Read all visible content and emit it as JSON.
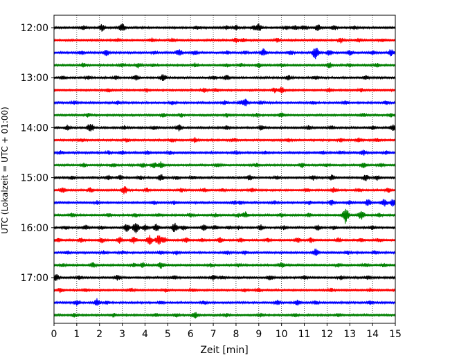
{
  "chart_data": {
    "type": "line",
    "title": "",
    "xlabel": "Zeit  [min]",
    "ylabel": "UTC (Lokalzeit = UTC + 01:00)",
    "xlim": [
      0,
      15
    ],
    "x_ticks": [
      "0",
      "1",
      "2",
      "3",
      "4",
      "5",
      "6",
      "7",
      "8",
      "9",
      "10",
      "11",
      "12",
      "13",
      "14",
      "15"
    ],
    "y_ticks": [
      "12:00",
      "13:00",
      "14:00",
      "15:00",
      "16:00",
      "17:00"
    ],
    "trace_interval_min": 15,
    "color_cycle": [
      "#000000",
      "#ff0000",
      "#0000ff",
      "#008000"
    ],
    "grid_x": true,
    "grid_style": "dotted",
    "series": [
      {
        "start": "12:00",
        "color": "#000000",
        "events": [
          [
            1.3,
            3
          ],
          [
            2.1,
            5
          ],
          [
            3.0,
            6
          ],
          [
            6.3,
            3
          ],
          [
            7.6,
            3
          ],
          [
            8.0,
            4
          ],
          [
            8.8,
            4
          ],
          [
            9.0,
            6
          ],
          [
            10.2,
            3
          ],
          [
            10.6,
            4
          ],
          [
            11.0,
            4
          ],
          [
            11.6,
            5
          ],
          [
            12.3,
            4
          ],
          [
            13.2,
            3
          ]
        ]
      },
      {
        "start": "12:15",
        "color": "#ff0000",
        "events": [
          [
            2.8,
            3
          ],
          [
            4.3,
            3
          ],
          [
            5.2,
            3
          ],
          [
            8.0,
            4
          ],
          [
            8.3,
            3
          ],
          [
            9.8,
            3
          ],
          [
            12.6,
            4
          ],
          [
            13.4,
            3
          ],
          [
            14.4,
            3
          ]
        ]
      },
      {
        "start": "12:30",
        "color": "#0000ff",
        "events": [
          [
            1.2,
            3
          ],
          [
            2.3,
            5
          ],
          [
            4.4,
            3
          ],
          [
            5.5,
            6
          ],
          [
            6.2,
            4
          ],
          [
            7.6,
            3
          ],
          [
            8.4,
            3
          ],
          [
            9.2,
            6
          ],
          [
            10.4,
            4
          ],
          [
            11.5,
            10
          ],
          [
            12.1,
            4
          ],
          [
            13.0,
            4
          ],
          [
            14.0,
            3
          ],
          [
            14.8,
            5
          ]
        ]
      },
      {
        "start": "12:45",
        "color": "#008000",
        "events": [
          [
            1.3,
            4
          ],
          [
            3.0,
            3
          ],
          [
            3.7,
            4
          ],
          [
            4.4,
            3
          ],
          [
            6.2,
            3
          ],
          [
            7.6,
            3
          ],
          [
            8.2,
            3
          ],
          [
            9.0,
            4
          ],
          [
            10.0,
            3
          ],
          [
            12.1,
            4
          ],
          [
            13.0,
            3
          ],
          [
            14.2,
            3
          ]
        ]
      },
      {
        "start": "13:00",
        "color": "#000000",
        "events": [
          [
            0.4,
            3
          ],
          [
            1.5,
            3
          ],
          [
            2.7,
            3
          ],
          [
            3.6,
            4
          ],
          [
            4.8,
            6
          ],
          [
            7.0,
            3
          ],
          [
            7.6,
            4
          ],
          [
            10.3,
            4
          ],
          [
            11.5,
            3
          ],
          [
            13.7,
            3
          ]
        ]
      },
      {
        "start": "13:15",
        "color": "#ff0000",
        "events": [
          [
            2.4,
            3
          ],
          [
            4.1,
            3
          ],
          [
            6.6,
            4
          ],
          [
            7.1,
            3
          ],
          [
            9.7,
            4
          ],
          [
            10.0,
            5
          ],
          [
            12.1,
            3
          ],
          [
            13.5,
            3
          ]
        ]
      },
      {
        "start": "13:30",
        "color": "#0000ff",
        "events": [
          [
            0.9,
            3
          ],
          [
            2.8,
            3
          ],
          [
            5.2,
            3
          ],
          [
            7.5,
            3
          ],
          [
            8.2,
            3
          ],
          [
            8.4,
            6
          ],
          [
            9.1,
            3
          ],
          [
            11.4,
            3
          ],
          [
            12.8,
            3
          ],
          [
            14.6,
            3
          ]
        ]
      },
      {
        "start": "13:45",
        "color": "#008000",
        "events": [
          [
            1.5,
            3
          ],
          [
            4.8,
            3
          ],
          [
            5.6,
            3
          ],
          [
            7.6,
            3
          ],
          [
            8.9,
            3
          ],
          [
            10.0,
            4
          ],
          [
            13.6,
            3
          ],
          [
            14.8,
            3
          ]
        ]
      },
      {
        "start": "14:00",
        "color": "#000000",
        "events": [
          [
            0.6,
            4
          ],
          [
            1.6,
            8
          ],
          [
            3.1,
            3
          ],
          [
            4.4,
            3
          ],
          [
            5.5,
            5
          ],
          [
            7.6,
            3
          ],
          [
            9.1,
            4
          ],
          [
            11.2,
            3
          ],
          [
            12.2,
            3
          ],
          [
            14.0,
            3
          ],
          [
            14.9,
            5
          ]
        ]
      },
      {
        "start": "14:15",
        "color": "#ff0000",
        "events": [
          [
            1.2,
            3
          ],
          [
            3.2,
            3
          ],
          [
            5.2,
            3
          ],
          [
            6.2,
            4
          ],
          [
            7.9,
            3
          ],
          [
            10.3,
            3
          ],
          [
            12.6,
            3
          ],
          [
            13.4,
            4
          ],
          [
            14.2,
            3
          ]
        ]
      },
      {
        "start": "14:30",
        "color": "#0000ff",
        "events": [
          [
            0.3,
            3
          ],
          [
            2.4,
            3
          ],
          [
            3.0,
            3
          ],
          [
            4.1,
            3
          ],
          [
            5.1,
            3
          ],
          [
            8.0,
            3
          ],
          [
            9.3,
            3
          ],
          [
            11.8,
            3
          ],
          [
            12.6,
            3
          ],
          [
            13.6,
            4
          ],
          [
            14.6,
            3
          ]
        ]
      },
      {
        "start": "14:45",
        "color": "#008000",
        "events": [
          [
            1.3,
            3
          ],
          [
            2.6,
            3
          ],
          [
            3.9,
            3
          ],
          [
            4.4,
            4
          ],
          [
            4.7,
            5
          ],
          [
            7.2,
            3
          ],
          [
            8.9,
            3
          ],
          [
            10.9,
            4
          ],
          [
            12.0,
            3
          ],
          [
            13.6,
            4
          ],
          [
            14.4,
            3
          ]
        ]
      },
      {
        "start": "15:00",
        "color": "#000000",
        "events": [
          [
            0.8,
            3
          ],
          [
            2.4,
            4
          ],
          [
            2.9,
            4
          ],
          [
            3.8,
            3
          ],
          [
            4.7,
            5
          ],
          [
            5.4,
            3
          ],
          [
            6.1,
            3
          ],
          [
            8.6,
            4
          ],
          [
            9.8,
            3
          ],
          [
            11.4,
            4
          ],
          [
            12.2,
            4
          ],
          [
            13.7,
            5
          ],
          [
            14.2,
            4
          ]
        ]
      },
      {
        "start": "15:15",
        "color": "#ff0000",
        "events": [
          [
            0.4,
            4
          ],
          [
            1.6,
            4
          ],
          [
            3.1,
            6
          ],
          [
            4.1,
            3
          ],
          [
            5.6,
            3
          ],
          [
            6.6,
            3
          ],
          [
            7.4,
            3
          ],
          [
            8.7,
            3
          ],
          [
            11.1,
            3
          ],
          [
            12.3,
            4
          ],
          [
            13.4,
            3
          ],
          [
            14.7,
            4
          ]
        ]
      },
      {
        "start": "15:30",
        "color": "#0000ff",
        "events": [
          [
            1.9,
            3
          ],
          [
            4.4,
            3
          ],
          [
            5.3,
            3
          ],
          [
            7.9,
            3
          ],
          [
            8.2,
            3
          ],
          [
            9.7,
            3
          ],
          [
            11.2,
            3
          ],
          [
            12.2,
            4
          ],
          [
            13.0,
            3
          ],
          [
            13.8,
            5
          ],
          [
            14.5,
            6
          ],
          [
            14.9,
            6
          ]
        ]
      },
      {
        "start": "15:45",
        "color": "#008000",
        "events": [
          [
            0.8,
            3
          ],
          [
            2.4,
            3
          ],
          [
            3.6,
            3
          ],
          [
            4.6,
            3
          ],
          [
            6.0,
            3
          ],
          [
            7.1,
            3
          ],
          [
            8.1,
            3
          ],
          [
            8.4,
            5
          ],
          [
            10.0,
            3
          ],
          [
            11.2,
            3
          ],
          [
            12.8,
            12
          ],
          [
            13.5,
            7
          ],
          [
            14.3,
            3
          ]
        ]
      },
      {
        "start": "16:00",
        "color": "#000000",
        "events": [
          [
            0.5,
            3
          ],
          [
            1.4,
            4
          ],
          [
            2.1,
            3
          ],
          [
            3.2,
            6
          ],
          [
            3.6,
            8
          ],
          [
            4.0,
            5
          ],
          [
            4.5,
            6
          ],
          [
            5.3,
            7
          ],
          [
            5.7,
            4
          ],
          [
            6.6,
            5
          ],
          [
            7.1,
            4
          ],
          [
            7.7,
            3
          ],
          [
            8.1,
            3
          ],
          [
            9.1,
            4
          ],
          [
            10.1,
            3
          ],
          [
            11.6,
            4
          ],
          [
            12.3,
            3
          ],
          [
            14.0,
            3
          ]
        ]
      },
      {
        "start": "16:15",
        "color": "#ff0000",
        "events": [
          [
            0.2,
            4
          ],
          [
            1.2,
            4
          ],
          [
            2.1,
            4
          ],
          [
            2.9,
            5
          ],
          [
            3.5,
            5
          ],
          [
            4.2,
            7
          ],
          [
            4.6,
            8
          ],
          [
            4.8,
            6
          ],
          [
            5.8,
            4
          ],
          [
            6.5,
            3
          ],
          [
            7.3,
            4
          ],
          [
            8.2,
            4
          ],
          [
            9.4,
            3
          ],
          [
            10.7,
            4
          ],
          [
            11.3,
            4
          ],
          [
            12.5,
            4
          ],
          [
            13.5,
            3
          ],
          [
            14.3,
            3
          ]
        ]
      },
      {
        "start": "16:30",
        "color": "#0000ff",
        "events": [
          [
            0.6,
            3
          ],
          [
            2.2,
            3
          ],
          [
            3.0,
            3
          ],
          [
            4.7,
            3
          ],
          [
            5.4,
            3
          ],
          [
            7.6,
            3
          ],
          [
            8.4,
            3
          ],
          [
            11.5,
            6
          ],
          [
            12.9,
            3
          ],
          [
            14.1,
            3
          ]
        ]
      },
      {
        "start": "16:45",
        "color": "#008000",
        "events": [
          [
            0.4,
            3
          ],
          [
            1.7,
            4
          ],
          [
            3.5,
            3
          ],
          [
            3.9,
            4
          ],
          [
            4.7,
            5
          ],
          [
            6.9,
            3
          ],
          [
            8.1,
            3
          ],
          [
            10.0,
            4
          ],
          [
            12.5,
            3
          ],
          [
            13.7,
            3
          ],
          [
            14.5,
            3
          ]
        ]
      },
      {
        "start": "17:00",
        "color": "#000000",
        "events": [
          [
            0.1,
            5
          ],
          [
            1.1,
            3
          ],
          [
            2.8,
            4
          ],
          [
            5.3,
            3
          ],
          [
            7.0,
            4
          ],
          [
            7.4,
            3
          ],
          [
            9.5,
            4
          ],
          [
            11.0,
            3
          ],
          [
            12.6,
            3
          ],
          [
            13.8,
            3
          ]
        ]
      },
      {
        "start": "17:15",
        "color": "#ff0000",
        "events": [
          [
            0.3,
            4
          ],
          [
            1.4,
            3
          ],
          [
            3.4,
            3
          ],
          [
            4.9,
            3
          ],
          [
            6.1,
            3
          ],
          [
            8.4,
            3
          ],
          [
            9.0,
            3
          ],
          [
            12.2,
            3
          ],
          [
            13.9,
            3
          ]
        ]
      },
      {
        "start": "17:30",
        "color": "#0000ff",
        "events": [
          [
            1.0,
            4
          ],
          [
            1.9,
            6
          ],
          [
            2.3,
            3
          ],
          [
            4.7,
            3
          ],
          [
            6.6,
            3
          ],
          [
            9.8,
            4
          ],
          [
            10.7,
            4
          ],
          [
            11.5,
            3
          ],
          [
            13.9,
            3
          ]
        ]
      },
      {
        "start": "17:45",
        "color": "#008000",
        "events": [
          [
            0.9,
            3
          ],
          [
            2.6,
            3
          ],
          [
            4.5,
            3
          ],
          [
            5.4,
            3
          ],
          [
            6.2,
            5
          ],
          [
            7.6,
            3
          ],
          [
            9.1,
            3
          ],
          [
            10.6,
            3
          ],
          [
            12.5,
            3
          ]
        ]
      }
    ]
  }
}
